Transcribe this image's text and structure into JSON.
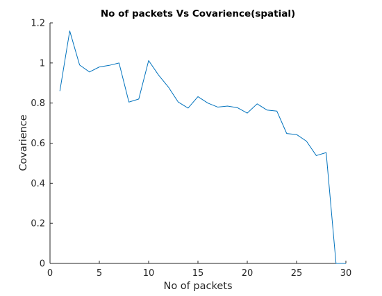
{
  "chart_data": {
    "type": "line",
    "title": "No of packets Vs Covarience(spatial)",
    "xlabel": "No of packets",
    "ylabel": "Covarience",
    "xlim": [
      0,
      30
    ],
    "ylim": [
      0,
      1.2
    ],
    "x_ticks": [
      0,
      5,
      10,
      15,
      20,
      25,
      30
    ],
    "y_ticks": [
      0,
      0.2,
      0.4,
      0.6,
      0.8,
      1,
      1.2
    ],
    "x_tick_labels": [
      "0",
      "5",
      "10",
      "15",
      "20",
      "25",
      "30"
    ],
    "y_tick_labels": [
      "0",
      "0.2",
      "0.4",
      "0.6",
      "0.8",
      "1",
      "1.2"
    ],
    "grid": false,
    "series": [
      {
        "color": "#0072bd",
        "x": [
          1,
          2,
          3,
          4,
          5,
          6,
          7,
          8,
          9,
          10,
          11,
          12,
          13,
          14,
          15,
          16,
          17,
          18,
          19,
          20,
          21,
          22,
          23,
          24,
          25,
          26,
          27,
          28,
          29,
          30
        ],
        "y": [
          0.86,
          1.16,
          0.99,
          0.955,
          0.98,
          0.988,
          1.0,
          0.805,
          0.82,
          1.012,
          0.94,
          0.88,
          0.805,
          0.775,
          0.832,
          0.8,
          0.78,
          0.785,
          0.777,
          0.75,
          0.796,
          0.765,
          0.76,
          0.648,
          0.643,
          0.61,
          0.538,
          0.553,
          0.0,
          0.0
        ]
      }
    ]
  }
}
